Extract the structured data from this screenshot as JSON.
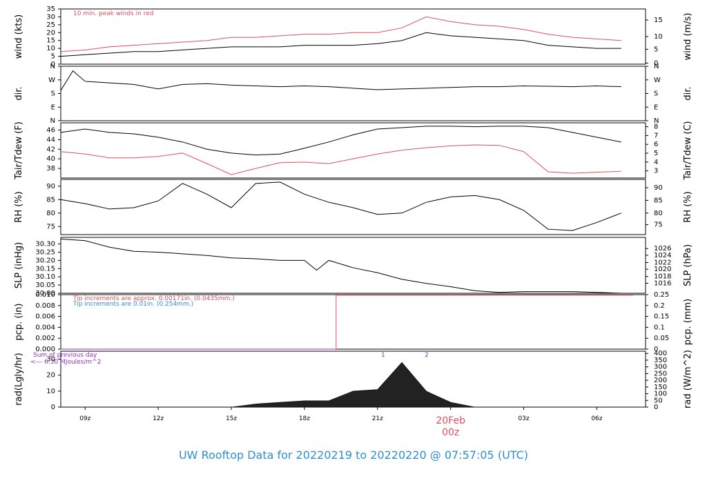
{
  "chart_data": {
    "type": "line",
    "title": "UW Rooftop Data for 20220219  to  20220220 @ 07:57:05  (UTC)",
    "x_ticks": [
      "09z",
      "12z",
      "15z",
      "18z",
      "21z",
      "00z",
      "03z",
      "06z"
    ],
    "date_marker": {
      "day": "20Feb",
      "hour": "00z"
    },
    "time_range_hours": [
      0,
      24
    ],
    "colors": {
      "black": "#000000",
      "red": "#e0505a",
      "blue": "#2b8fd6",
      "purple": "#9a2fd0"
    },
    "panels": [
      {
        "ylabel_left": "wind (kts)",
        "ylabel_right": "wind (m/s)",
        "ylim": [
          0,
          35
        ],
        "yticks_left": [
          "0",
          "5",
          "10",
          "15",
          "20",
          "25",
          "30",
          "35"
        ],
        "yticks_right": [
          "0",
          "5",
          "10",
          "15"
        ],
        "annotation": "10 min. peak winds in red",
        "series": [
          {
            "color": "#000000",
            "t": [
              0,
              1,
              2,
              3,
              4,
              5,
              6,
              7,
              8,
              9,
              10,
              11,
              12,
              13,
              14,
              15,
              16,
              17,
              18,
              19,
              20,
              21,
              22,
              23
            ],
            "values": [
              5,
              6,
              7,
              8,
              8,
              9,
              10,
              11,
              11,
              11,
              12,
              12,
              12,
              13,
              15,
              20,
              18,
              17,
              16,
              15,
              12,
              11,
              10,
              10
            ]
          },
          {
            "color": "#e0505a",
            "t": [
              0,
              1,
              2,
              3,
              4,
              5,
              6,
              7,
              8,
              9,
              10,
              11,
              12,
              13,
              14,
              15,
              16,
              17,
              18,
              19,
              20,
              21,
              22,
              23
            ],
            "values": [
              8,
              9,
              11,
              12,
              13,
              14,
              15,
              17,
              17,
              18,
              19,
              19,
              20,
              20,
              23,
              30,
              27,
              25,
              24,
              22,
              19,
              17,
              16,
              15
            ]
          }
        ]
      },
      {
        "ylabel_left": "dir.",
        "ylabel_right": "dir.",
        "ylim": [
          0,
          360
        ],
        "yticks_left": [
          "N",
          "E",
          "S",
          "W",
          "N"
        ],
        "yticks_right": [
          "N",
          "E",
          "S",
          "W",
          "N"
        ],
        "series": [
          {
            "color": "#000000",
            "t": [
              0,
              0.5,
              1,
              2,
              3,
              4,
              5,
              6,
              7,
              8,
              9,
              10,
              11,
              12,
              13,
              14,
              15,
              16,
              17,
              18,
              19,
              20,
              21,
              22,
              23
            ],
            "values": [
              200,
              330,
              260,
              250,
              240,
              210,
              240,
              245,
              235,
              230,
              225,
              230,
              225,
              215,
              205,
              210,
              215,
              220,
              225,
              225,
              230,
              228,
              225,
              230,
              225
            ]
          }
        ]
      },
      {
        "ylabel_left": "Tair/Tdew (F)",
        "ylabel_right": "Tair/Tdew (C)",
        "ylim": [
          36,
          47.5
        ],
        "yticks_left": [
          "38",
          "40",
          "42",
          "44",
          "46"
        ],
        "yticks_right": [
          "3",
          "4",
          "5",
          "6",
          "7",
          "8"
        ],
        "series": [
          {
            "name": "Tair",
            "color": "#000000",
            "t": [
              0,
              1,
              2,
              3,
              4,
              5,
              6,
              7,
              8,
              9,
              10,
              11,
              12,
              13,
              14,
              15,
              16,
              17,
              18,
              19,
              20,
              21,
              22,
              23
            ],
            "values": [
              45.5,
              46.2,
              45.5,
              45.2,
              44.5,
              43.5,
              42,
              41.2,
              40.8,
              41,
              42.2,
              43.5,
              45,
              46.2,
              46.5,
              46.8,
              46.8,
              46.7,
              46.8,
              46.8,
              46.5,
              45.5,
              44.5,
              43.5
            ]
          },
          {
            "name": "Tdew",
            "color": "#e0505a",
            "t": [
              0,
              1,
              2,
              3,
              4,
              5,
              6,
              7,
              8,
              9,
              10,
              11,
              12,
              13,
              14,
              15,
              16,
              17,
              18,
              19,
              20,
              21,
              22,
              23
            ],
            "values": [
              41.5,
              41,
              40.2,
              40.2,
              40.5,
              41.2,
              39,
              36.7,
              38,
              39.2,
              39.3,
              39,
              40,
              41,
              41.8,
              42.3,
              42.7,
              42.9,
              42.8,
              41.5,
              37.3,
              37,
              37.2,
              37.4
            ]
          }
        ]
      },
      {
        "ylabel_left": "RH (%)",
        "ylabel_right": "RH (%)",
        "ylim": [
          72,
          92.5
        ],
        "yticks_left": [
          "75",
          "80",
          "85",
          "90"
        ],
        "yticks_right": [
          "75",
          "80",
          "85",
          "90"
        ],
        "series": [
          {
            "color": "#000000",
            "t": [
              0,
              1,
              2,
              3,
              4,
              5,
              6,
              7,
              8,
              9,
              10,
              11,
              12,
              13,
              14,
              15,
              16,
              17,
              18,
              19,
              20,
              21,
              22,
              23
            ],
            "values": [
              85,
              83.5,
              81.5,
              82,
              84.5,
              91,
              87,
              82,
              91,
              91.5,
              87,
              84,
              82,
              79.5,
              80,
              84,
              86,
              86.5,
              85,
              81,
              74,
              73.5,
              76.5,
              80
            ]
          }
        ]
      },
      {
        "ylabel_left": "SLP (inHg)",
        "ylabel_right": "SLP (hPa)",
        "ylim": [
          30.0,
          30.34
        ],
        "yticks_left": [
          "30.00",
          "30.05",
          "30.10",
          "30.15",
          "30.20",
          "30.25",
          "30.30"
        ],
        "yticks_right": [
          "1016",
          "1018",
          "1020",
          "1022",
          "1024",
          "1026"
        ],
        "series": [
          {
            "color": "#000000",
            "t": [
              0,
              1,
              2,
              3,
              4,
              5,
              6,
              7,
              8,
              9,
              10,
              10.5,
              11,
              12,
              13,
              14,
              15,
              16,
              17,
              18,
              19,
              20,
              21,
              22,
              23
            ],
            "values": [
              30.33,
              30.32,
              30.28,
              30.255,
              30.25,
              30.24,
              30.23,
              30.215,
              30.21,
              30.2,
              30.2,
              30.14,
              30.2,
              30.155,
              30.125,
              30.085,
              30.06,
              30.04,
              30.015,
              30.005,
              30.01,
              30.01,
              30.01,
              30.005,
              30.0
            ]
          }
        ]
      },
      {
        "ylabel_left": "pcp. (in)",
        "ylabel_right": "pcp. (mm)",
        "ylim": [
          0,
          0.01
        ],
        "yticks_left": [
          "0.000",
          "0.002",
          "0.004",
          "0.006",
          "0.008",
          "0.010"
        ],
        "yticks_right": [
          "0",
          "0.05",
          "0.1",
          "0.15",
          "0.2",
          "0.25"
        ],
        "annotations": [
          {
            "text": "Tip increments are approx. 0.00171in. (0.0435mm.)",
            "color": "#e0505a"
          },
          {
            "text": "Tip increments are 0.01in. (0.254mm.)",
            "color": "#2b8fd6"
          }
        ],
        "series": [
          {
            "color": "#e0505a",
            "t": [
              0,
              11.3,
              11.3,
              23.5
            ],
            "values": [
              0,
              0,
              0.0099,
              0.0099
            ]
          },
          {
            "color": "#9a2fd0",
            "t": [
              0,
              11.3
            ],
            "values": [
              0,
              0
            ]
          }
        ]
      },
      {
        "ylabel_left": "rad(Lgly/hr)",
        "ylabel_right": "rad (W/m^2)",
        "ylim": [
          0,
          35
        ],
        "yticks_left": [
          "0",
          "10",
          "20",
          "30"
        ],
        "yticks_right": [
          "0",
          "50",
          "100",
          "150",
          "200",
          "250",
          "300",
          "350",
          "400"
        ],
        "annotations": [
          {
            "text": "Sum of previous day",
            "color": "#9a2fd0"
          },
          {
            "text": "<--- 6.30 MJoules/m^2",
            "color": "#9a2fd0"
          }
        ],
        "markers": [
          "1",
          "2"
        ],
        "series": [
          {
            "color": "#000000",
            "t": [
              7,
              8,
              9,
              10,
              11,
              12,
              13,
              14,
              15,
              16,
              17
            ],
            "values": [
              0,
              2,
              3,
              4,
              4,
              10,
              11,
              28,
              10,
              3,
              0
            ]
          }
        ]
      }
    ]
  }
}
